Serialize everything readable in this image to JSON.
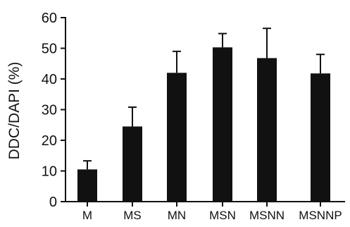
{
  "chart_data": {
    "type": "bar",
    "title": "",
    "xlabel": "",
    "ylabel": "DDC/DAPI (%)",
    "categories": [
      "M",
      "MS",
      "MN",
      "MSN",
      "MSNN",
      "MSNNP"
    ],
    "values": [
      10.5,
      24.5,
      42,
      50.3,
      46.8,
      41.8
    ],
    "error_upper": [
      2.8,
      6.3,
      7,
      4.5,
      9.7,
      6.2
    ],
    "ylim": [
      0,
      60
    ],
    "yticks": [
      0,
      10,
      20,
      30,
      40,
      50,
      60
    ],
    "grid": false,
    "legend": "none",
    "bar_color": "#111111"
  }
}
